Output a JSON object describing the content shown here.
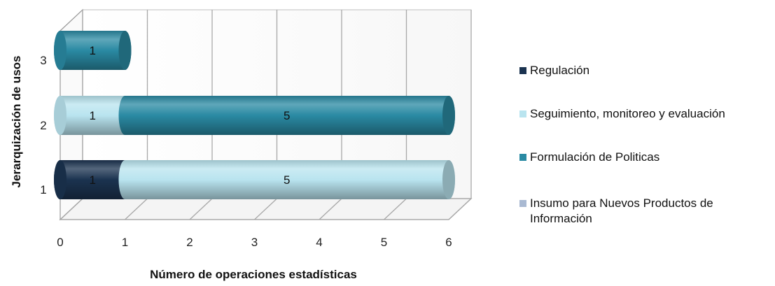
{
  "chart_data": {
    "type": "bar",
    "orientation": "horizontal",
    "stacked": true,
    "style": "3d-cylinder",
    "categories": [
      "1",
      "2",
      "3"
    ],
    "series": [
      {
        "name": "Regulación",
        "values": [
          1,
          0,
          0
        ],
        "color": "#1b3350"
      },
      {
        "name": "Seguimiento, monitoreo y evaluación",
        "values": [
          5,
          1,
          0
        ],
        "color": "#b9e4ef"
      },
      {
        "name": "Formulación de Politicas",
        "values": [
          0,
          5,
          1
        ],
        "color": "#2a8aa3"
      },
      {
        "name": "Insumo para Nuevos Productos de Información",
        "values": [
          0,
          0,
          0
        ],
        "color": "#a9b9d2"
      }
    ],
    "segment_order": [
      [
        "Regulación",
        "Seguimiento, monitoreo y evaluación"
      ],
      [
        "Seguimiento, monitoreo y evaluación",
        "Formulación de Politicas"
      ],
      [
        "Formulación de Politicas"
      ]
    ],
    "xlabel": "Número de operaciones estadísticas",
    "ylabel": "Jerarquización de usos",
    "xlim": [
      0,
      6
    ],
    "xticks": [
      "0",
      "1",
      "2",
      "3",
      "4",
      "5",
      "6"
    ],
    "grid": true,
    "legend_position": "right"
  }
}
